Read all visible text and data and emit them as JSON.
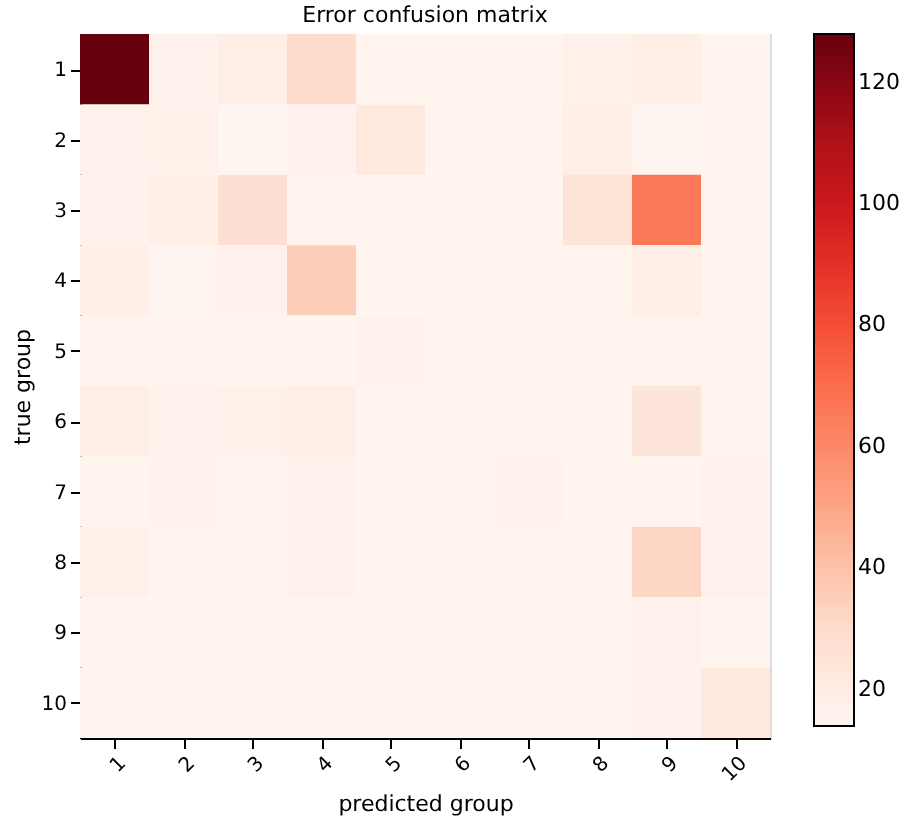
{
  "chart_data": {
    "type": "heatmap",
    "title": "Error confusion matrix",
    "xlabel": "predicted group",
    "ylabel": "true group",
    "categories": [
      "1",
      "2",
      "3",
      "4",
      "5",
      "6",
      "7",
      "8",
      "9",
      "10"
    ],
    "y_categories": [
      "1",
      "2",
      "3",
      "4",
      "5",
      "6",
      "7",
      "8",
      "9",
      "10"
    ],
    "cells": [
      [
        128,
        16,
        19,
        30,
        15,
        15,
        15,
        17,
        19,
        15
      ],
      [
        16,
        17,
        14,
        16,
        22,
        15,
        15,
        19,
        14,
        15
      ],
      [
        16,
        18,
        28,
        15,
        15,
        15,
        15,
        26,
        66,
        15
      ],
      [
        18,
        14,
        16,
        35,
        15,
        15,
        15,
        15,
        19,
        15
      ],
      [
        15,
        15,
        15,
        15,
        16,
        15,
        15,
        15,
        15,
        15
      ],
      [
        19,
        16,
        17,
        19,
        15,
        15,
        15,
        15,
        25,
        15
      ],
      [
        15,
        16,
        15,
        16,
        15,
        15,
        16,
        15,
        15,
        16
      ],
      [
        17,
        15,
        15,
        16,
        15,
        15,
        15,
        15,
        32,
        16
      ],
      [
        15,
        15,
        15,
        15,
        15,
        15,
        15,
        15,
        16,
        15
      ],
      [
        15,
        15,
        15,
        15,
        15,
        15,
        15,
        15,
        16,
        22
      ]
    ],
    "clim": [
      14,
      128
    ],
    "cticks": [
      20,
      40,
      60,
      80,
      100,
      120
    ],
    "grid": false
  }
}
